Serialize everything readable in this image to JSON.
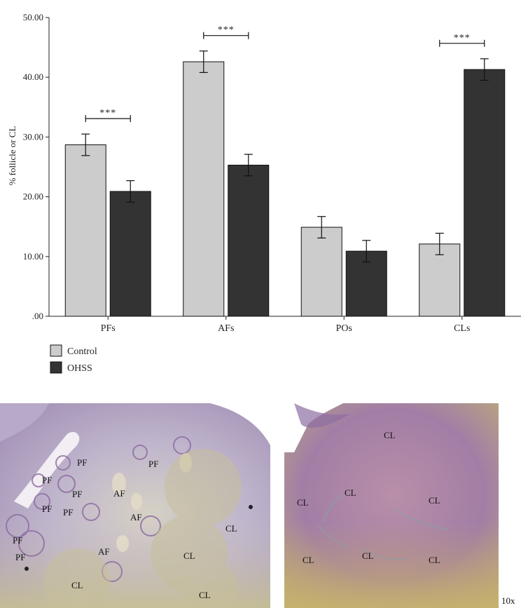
{
  "chart_data": {
    "type": "bar",
    "ylabel": "% follicle or CL",
    "ylim": [
      0,
      50
    ],
    "yticks": [
      ".00",
      "10.00",
      "20.00",
      "30.00",
      "40.00",
      "50.00"
    ],
    "categories": [
      "PFs",
      "AFs",
      "POs",
      "CLs"
    ],
    "series": [
      {
        "name": "Control",
        "color": "#cccccc",
        "values": [
          28.7,
          42.6,
          14.9,
          12.1
        ],
        "errors": [
          1.8,
          1.8,
          1.8,
          1.8
        ]
      },
      {
        "name": "OHSS",
        "color": "#333333",
        "values": [
          20.9,
          25.3,
          10.9,
          41.3
        ],
        "errors": [
          1.8,
          1.8,
          1.8,
          1.8
        ]
      }
    ],
    "significance": [
      {
        "category": "PFs",
        "label": "***"
      },
      {
        "category": "AFs",
        "label": "***"
      },
      {
        "category": "CLs",
        "label": "***"
      }
    ],
    "legend_position": "bottom-left"
  },
  "micrographs": {
    "left_labels": [
      "PF",
      "PF",
      "PF",
      "PF",
      "PF",
      "PF",
      "PF",
      "PF",
      "AF",
      "AF",
      "AF",
      "CL",
      "CL",
      "CL",
      "CL"
    ],
    "right_labels": [
      "CL",
      "CL",
      "CL",
      "CL",
      "CL",
      "CL",
      "CL"
    ],
    "magnification": "10x"
  }
}
